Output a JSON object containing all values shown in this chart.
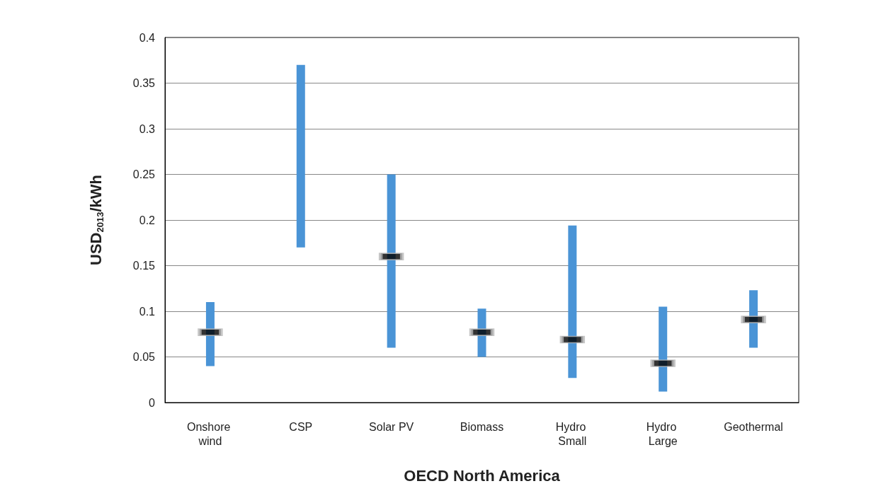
{
  "chart_data": {
    "type": "bar",
    "xlabel": "OECD North America",
    "ylabel": "USD$_{2013}$/kWh",
    "categories": [
      "Onshore wind",
      "CSP",
      "Solar PV",
      "Biomass",
      "Hydro Small",
      "Hydro Large",
      "Geothermal"
    ],
    "series": [
      {
        "color": "#4a94d6",
        "base": [
          0.04,
          0.17,
          0.06,
          0.05,
          0.027,
          0.012,
          0.06
        ],
        "values": [
          0.07,
          0.2,
          0.19,
          0.053,
          0.167,
          0.093,
          0.063
        ]
      },
      {
        "type": "scatter",
        "color": "#000000",
        "x": [
          "Onshore wind",
          "Solar PV",
          "Biomass",
          "Hydro Small",
          "Hydro Large",
          "Geothermal"
        ],
        "values": [
          0.077,
          0.16,
          0.077,
          0.069,
          0.043,
          0.091
        ]
      }
    ],
    "ylim": [
      0,
      0.4
    ],
    "yticks": [
      0,
      0.05,
      0.1,
      0.15,
      0.2,
      0.25,
      0.3,
      0.35,
      0.4
    ],
    "grid": "y"
  }
}
